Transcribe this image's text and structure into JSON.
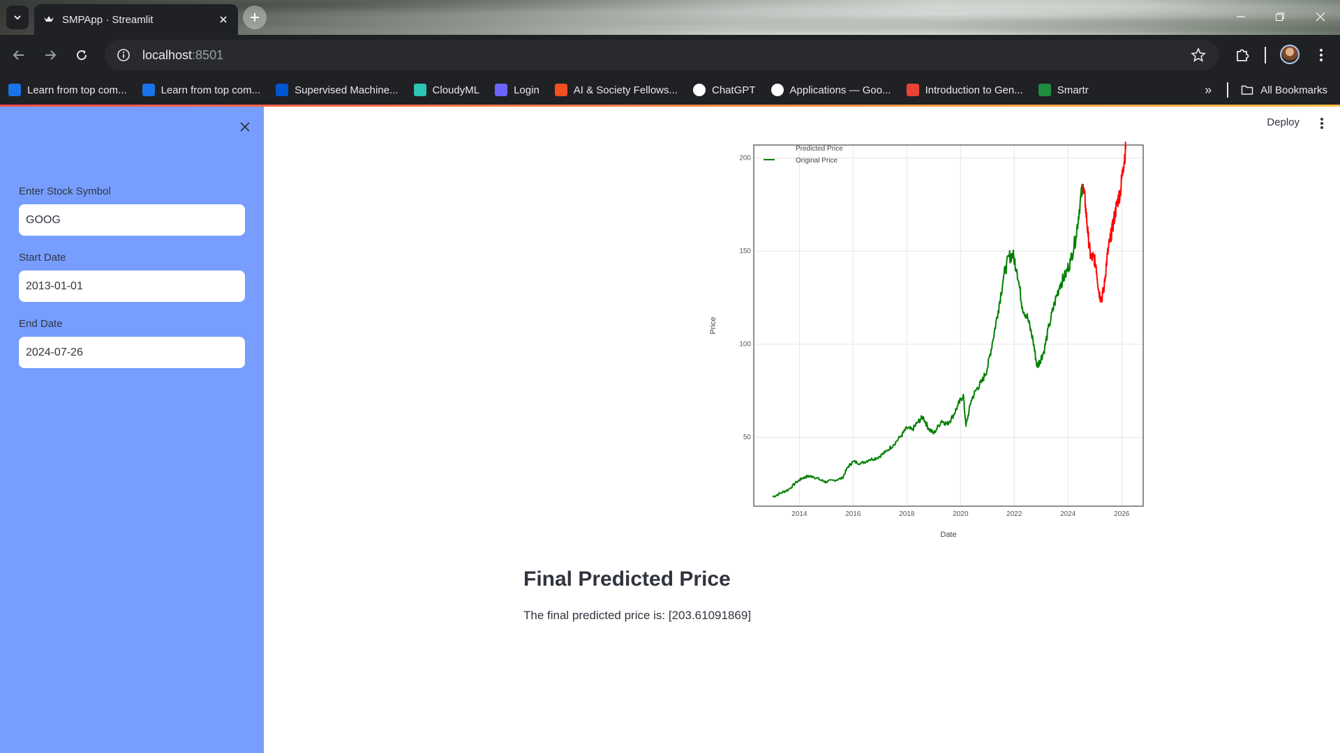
{
  "browser": {
    "tab_title": "SMPApp · Streamlit",
    "url_host": "localhost",
    "url_port": ":8501",
    "bookmarks": [
      {
        "label": "Learn from top com...",
        "icon": "scaler-icon",
        "color": "#1a73e8"
      },
      {
        "label": "Learn from top com...",
        "icon": "scaler-icon",
        "color": "#1a73e8"
      },
      {
        "label": "Supervised Machine...",
        "icon": "coursera-icon",
        "color": "#0056d2"
      },
      {
        "label": "CloudyML",
        "icon": "cloudyml-icon",
        "color": "#2ec4b6"
      },
      {
        "label": "Login",
        "icon": "login-icon",
        "color": "#6c63ff"
      },
      {
        "label": "AI & Society Fellows...",
        "icon": "microsoft-icon",
        "color": "#f25022"
      },
      {
        "label": "ChatGPT",
        "icon": "chatgpt-icon",
        "color": "#ffffff"
      },
      {
        "label": "Applications — Goo...",
        "icon": "google-icon",
        "color": "#ffffff"
      },
      {
        "label": "Introduction to Gen...",
        "icon": "google-cloud-icon",
        "color": "#ea4335"
      },
      {
        "label": "Smartr",
        "icon": "smartr-icon",
        "color": "#1e8e3e"
      }
    ],
    "all_bookmarks": "All Bookmarks"
  },
  "sidebar": {
    "symbol_label": "Enter Stock Symbol",
    "symbol_value": "GOOG",
    "start_label": "Start Date",
    "start_value": "2013-01-01",
    "end_label": "End Date",
    "end_value": "2024-07-26"
  },
  "header": {
    "deploy_label": "Deploy"
  },
  "result": {
    "title": "Final Predicted Price",
    "text": "The final predicted price is: [203.61091869]"
  },
  "chart_data": {
    "type": "line",
    "xlabel": "Date",
    "ylabel": "Price",
    "xlim": [
      2012.3,
      2026.8
    ],
    "ylim": [
      13,
      207
    ],
    "x_ticks": [
      "2014",
      "2016",
      "2018",
      "2020",
      "2022",
      "2024",
      "2026"
    ],
    "y_ticks": [
      50,
      100,
      150,
      200
    ],
    "grid": true,
    "legend_position": "top-left",
    "series": [
      {
        "name": "Original Price",
        "color": "#008000",
        "points": [
          [
            2013.0,
            18
          ],
          [
            2013.3,
            20
          ],
          [
            2013.6,
            22
          ],
          [
            2013.9,
            26
          ],
          [
            2014.1,
            28
          ],
          [
            2014.3,
            29
          ],
          [
            2014.5,
            29
          ],
          [
            2014.8,
            27
          ],
          [
            2015.0,
            26
          ],
          [
            2015.3,
            27
          ],
          [
            2015.6,
            28
          ],
          [
            2015.8,
            34
          ],
          [
            2016.0,
            37
          ],
          [
            2016.3,
            36
          ],
          [
            2016.6,
            38
          ],
          [
            2016.9,
            39
          ],
          [
            2017.2,
            42
          ],
          [
            2017.5,
            46
          ],
          [
            2017.8,
            51
          ],
          [
            2018.0,
            55
          ],
          [
            2018.2,
            54
          ],
          [
            2018.4,
            58
          ],
          [
            2018.6,
            61
          ],
          [
            2018.8,
            55
          ],
          [
            2019.0,
            52
          ],
          [
            2019.3,
            59
          ],
          [
            2019.5,
            57
          ],
          [
            2019.7,
            61
          ],
          [
            2019.9,
            67
          ],
          [
            2020.1,
            73
          ],
          [
            2020.2,
            56
          ],
          [
            2020.4,
            70
          ],
          [
            2020.6,
            76
          ],
          [
            2020.8,
            80
          ],
          [
            2021.0,
            87
          ],
          [
            2021.2,
            102
          ],
          [
            2021.4,
            118
          ],
          [
            2021.6,
            136
          ],
          [
            2021.8,
            147
          ],
          [
            2021.95,
            148
          ],
          [
            2022.1,
            140
          ],
          [
            2022.3,
            120
          ],
          [
            2022.5,
            114
          ],
          [
            2022.7,
            102
          ],
          [
            2022.85,
            88
          ],
          [
            2022.95,
            91
          ],
          [
            2023.1,
            96
          ],
          [
            2023.3,
            110
          ],
          [
            2023.5,
            122
          ],
          [
            2023.7,
            132
          ],
          [
            2023.9,
            137
          ],
          [
            2024.1,
            145
          ],
          [
            2024.3,
            158
          ],
          [
            2024.45,
            176
          ],
          [
            2024.56,
            186
          ]
        ]
      },
      {
        "name": "Predicted Price",
        "color": "#ff0000",
        "points": [
          [
            2024.56,
            186
          ],
          [
            2024.65,
            175
          ],
          [
            2024.75,
            158
          ],
          [
            2024.85,
            146
          ],
          [
            2024.95,
            147
          ],
          [
            2025.05,
            142
          ],
          [
            2025.15,
            128
          ],
          [
            2025.25,
            124
          ],
          [
            2025.35,
            131
          ],
          [
            2025.45,
            146
          ],
          [
            2025.55,
            155
          ],
          [
            2025.65,
            162
          ],
          [
            2025.75,
            170
          ],
          [
            2025.85,
            177
          ],
          [
            2025.95,
            182
          ],
          [
            2026.05,
            195
          ],
          [
            2026.15,
            205
          ]
        ]
      }
    ]
  }
}
